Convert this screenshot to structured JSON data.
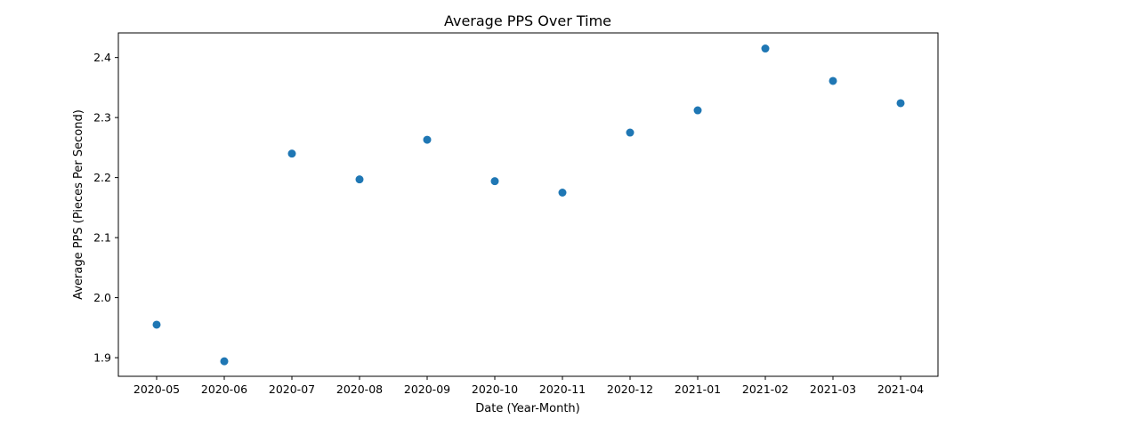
{
  "chart_data": {
    "type": "scatter",
    "title": "Average PPS Over Time",
    "xlabel": "Date (Year-Month)",
    "ylabel": "Average PPS (Pieces Per Second)",
    "x": [
      "2020-05",
      "2020-06",
      "2020-07",
      "2020-08",
      "2020-09",
      "2020-10",
      "2020-11",
      "2020-12",
      "2021-01",
      "2021-02",
      "2021-03",
      "2021-04"
    ],
    "y": [
      1.955,
      1.894,
      2.24,
      2.197,
      2.263,
      2.194,
      2.175,
      2.275,
      2.312,
      2.415,
      2.361,
      2.324
    ],
    "ylim": [
      1.869,
      2.441
    ],
    "yticks": [
      1.9,
      2.0,
      2.1,
      2.2,
      2.3,
      2.4
    ],
    "yticklabels": [
      "1.9",
      "2.0",
      "2.1",
      "2.2",
      "2.3",
      "2.4"
    ],
    "xticklabels": [
      "2020-05",
      "2020-06",
      "2020-07",
      "2020-08",
      "2020-09",
      "2020-10",
      "2020-11",
      "2020-12",
      "2021-01",
      "2021-02",
      "2021-03",
      "2021-04"
    ],
    "grid": false,
    "marker_color": "#1f77b4"
  }
}
